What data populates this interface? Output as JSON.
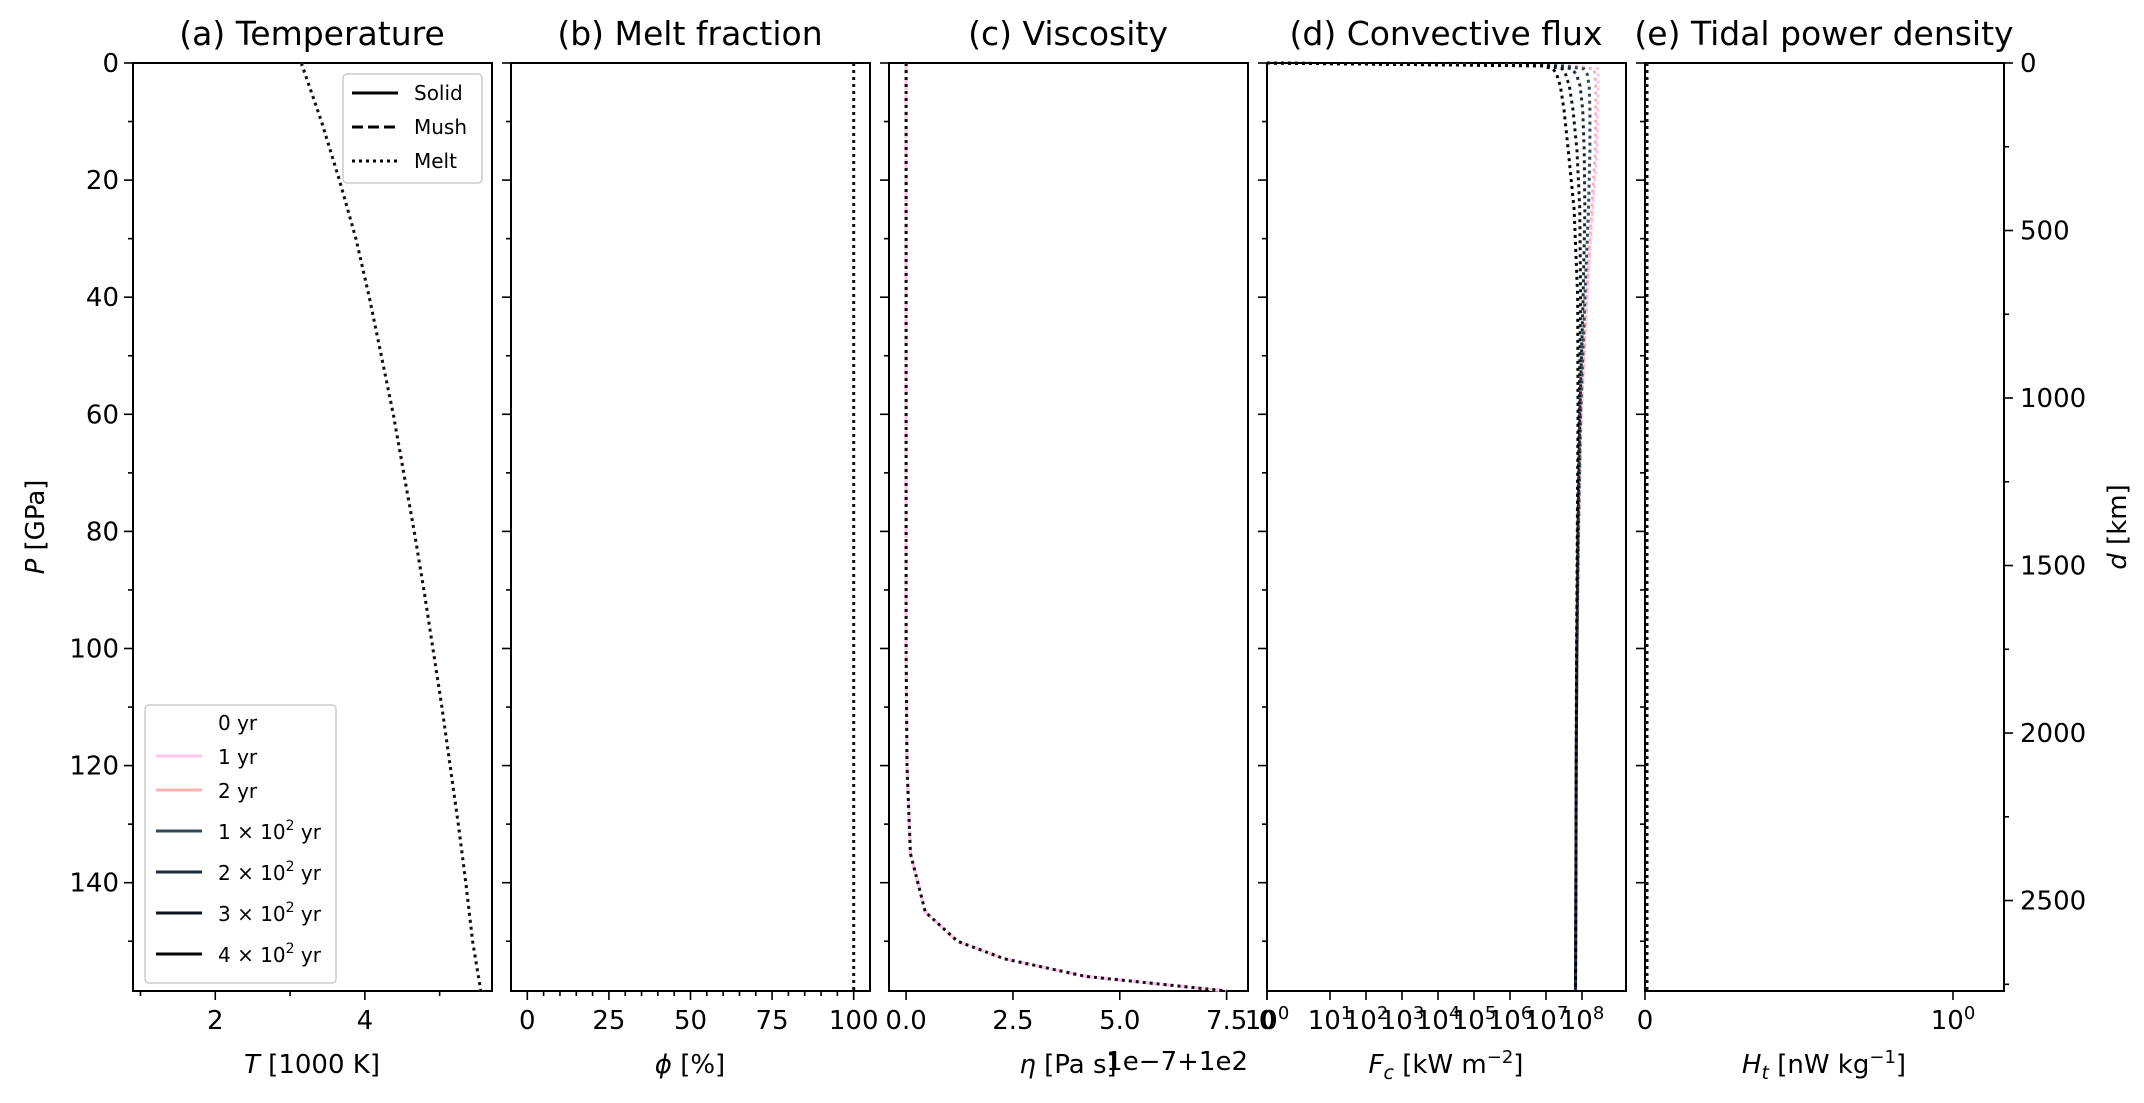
{
  "colors": {
    "axes": "#000000",
    "series": [
      "#ffffff",
      "#ffc6e9",
      "#ffb0b0",
      "#2f4b5b",
      "#1c2a3a",
      "#0f141c",
      "#050505"
    ]
  },
  "legend_phase": {
    "items": [
      {
        "label": "Solid",
        "dash": "solid"
      },
      {
        "label": "Mush",
        "dash": "dashed"
      },
      {
        "label": "Melt",
        "dash": "dotted"
      }
    ]
  },
  "legend_time": {
    "items": [
      {
        "label": "0 yr",
        "base": "",
        "exp": "",
        "unit": ""
      },
      {
        "label": "1 yr",
        "base": "",
        "exp": "",
        "unit": ""
      },
      {
        "label": "2 yr",
        "base": "",
        "exp": "",
        "unit": ""
      },
      {
        "label": "",
        "base": "1 × 10",
        "exp": "2",
        "unit": " yr"
      },
      {
        "label": "",
        "base": "2 × 10",
        "exp": "2",
        "unit": " yr"
      },
      {
        "label": "",
        "base": "3 × 10",
        "exp": "2",
        "unit": " yr"
      },
      {
        "label": "",
        "base": "4 × 10",
        "exp": "2",
        "unit": " yr"
      }
    ]
  },
  "right_axis": {
    "ylabel": "d [km]",
    "ticks": [
      "0",
      "500",
      "1000",
      "1500",
      "2000",
      "2500"
    ]
  },
  "chart_data": [
    {
      "type": "line",
      "title": "(a) Temperature",
      "xlabel_var": "T",
      "xlabel_unit": " [1000 K]",
      "ylabel_var": "P",
      "ylabel_unit": " [GPa]",
      "xlim": [
        0.9,
        5.7
      ],
      "ylim": [
        158.5,
        0
      ],
      "xticks": [
        "2",
        "4"
      ],
      "yticks": [
        "0",
        "20",
        "40",
        "60",
        "80",
        "100",
        "120",
        "140"
      ],
      "y_shared": [
        0,
        10,
        20,
        30,
        40,
        50,
        60,
        70,
        80,
        90,
        100,
        110,
        120,
        130,
        140,
        150,
        158.5
      ],
      "series": [
        {
          "name": "Melt",
          "phase": "melt",
          "values": [
            3.15,
            3.42,
            3.66,
            3.88,
            4.06,
            4.22,
            4.38,
            4.52,
            4.66,
            4.79,
            4.91,
            5.03,
            5.14,
            5.25,
            5.35,
            5.44,
            5.55
          ]
        }
      ]
    },
    {
      "type": "line",
      "title": "(b) Melt fraction",
      "xlabel_var": "ϕ",
      "xlabel_unit": " [%]",
      "xlim": [
        -5,
        105
      ],
      "ylim": [
        158.5,
        0
      ],
      "xticks": [
        "0",
        "25",
        "50",
        "75",
        "100"
      ],
      "series": [
        {
          "name": "Melt",
          "phase": "melt",
          "values": [
            100,
            100,
            100,
            100,
            100,
            100,
            100,
            100,
            100,
            100,
            100,
            100,
            100,
            100,
            100,
            100,
            100
          ]
        }
      ]
    },
    {
      "type": "line",
      "title": "(c) Viscosity",
      "xlabel_var": "η",
      "xlabel_unit": " [Pa s]",
      "offset_text": "1e−7+1e2",
      "xlim": [
        -0.4,
        8.0
      ],
      "ylim": [
        158.5,
        0
      ],
      "xticks": [
        "0.0",
        "2.5",
        "5.0",
        "7.5"
      ],
      "y": [
        0,
        20,
        40,
        60,
        80,
        100,
        120,
        135,
        145,
        150,
        153,
        156,
        158.5
      ],
      "series": [
        {
          "name": "Melt",
          "phase": "melt",
          "values": [
            0.0,
            0.0,
            0.0,
            0.0,
            0.0,
            0.0,
            0.02,
            0.1,
            0.45,
            1.2,
            2.3,
            4.2,
            7.5
          ]
        }
      ]
    },
    {
      "type": "line",
      "title": "(d) Convective flux",
      "xlabel_var": "F",
      "xlabel_sub": "c",
      "xlabel_unit": " [kW m",
      "xlabel_sup": "−2",
      "xlabel_end": "]",
      "xscale": "symlog",
      "xticks": [
        {
          "base": "0",
          "exp": ""
        },
        {
          "base": "10",
          "exp": "0"
        },
        {
          "base": "10",
          "exp": "1"
        },
        {
          "base": "10",
          "exp": "2"
        },
        {
          "base": "10",
          "exp": "3"
        },
        {
          "base": "10",
          "exp": "4"
        },
        {
          "base": "10",
          "exp": "5"
        },
        {
          "base": "10",
          "exp": "6"
        },
        {
          "base": "10",
          "exp": "7"
        },
        {
          "base": "10",
          "exp": "8"
        }
      ],
      "ylim": [
        158.5,
        0
      ],
      "y": [
        0,
        0.5,
        1,
        2,
        4,
        8,
        15,
        25,
        40,
        60,
        80,
        100,
        120,
        140,
        158.5
      ],
      "series": [
        {
          "name": "1 yr",
          "phase": "melt",
          "values_log10": [
            0,
            7.8,
            8.45,
            8.45,
            8.45,
            8.44,
            8.42,
            8.3,
            8.14,
            7.98,
            7.91,
            7.86,
            7.84,
            7.83,
            7.82
          ]
        },
        {
          "name": "2 yr",
          "phase": "melt",
          "values_log10": [
            0,
            7.7,
            8.33,
            8.36,
            8.38,
            8.38,
            8.37,
            8.27,
            8.13,
            7.98,
            7.91,
            7.86,
            7.84,
            7.83,
            7.82
          ]
        },
        {
          "name": "1 × 10^2 yr",
          "phase": "melt",
          "values_log10": [
            0,
            7.5,
            8.05,
            8.15,
            8.2,
            8.22,
            8.22,
            8.18,
            8.08,
            7.96,
            7.9,
            7.86,
            7.84,
            7.83,
            7.82
          ]
        },
        {
          "name": "2 × 10^2 yr",
          "phase": "melt",
          "values_log10": [
            0,
            7.3,
            7.72,
            7.85,
            7.95,
            8.02,
            8.06,
            8.08,
            8.03,
            7.94,
            7.89,
            7.86,
            7.84,
            7.83,
            7.82
          ]
        },
        {
          "name": "3 × 10^2 yr",
          "phase": "melt",
          "values_log10": [
            0,
            7.1,
            7.45,
            7.55,
            7.65,
            7.75,
            7.86,
            7.94,
            7.96,
            7.92,
            7.88,
            7.85,
            7.84,
            7.83,
            7.82
          ]
        },
        {
          "name": "4 × 10^2 yr",
          "phase": "melt",
          "values_log10": [
            0,
            6.9,
            7.2,
            7.3,
            7.4,
            7.5,
            7.62,
            7.78,
            7.88,
            7.89,
            7.87,
            7.85,
            7.84,
            7.83,
            7.82
          ]
        }
      ]
    },
    {
      "type": "line",
      "title": "(e) Tidal power density",
      "xlabel_var": "H",
      "xlabel_sub": "t",
      "xlabel_unit": " [nW kg",
      "xlabel_sup": "−1",
      "xlabel_end": "]",
      "xscale": "symlog",
      "xticks": [
        {
          "base": "0",
          "exp": ""
        },
        {
          "base": "10",
          "exp": "0"
        }
      ],
      "ylim": [
        158.5,
        0
      ],
      "series": [
        {
          "name": "Melt",
          "phase": "melt",
          "values": [
            0,
            0
          ]
        }
      ]
    }
  ]
}
